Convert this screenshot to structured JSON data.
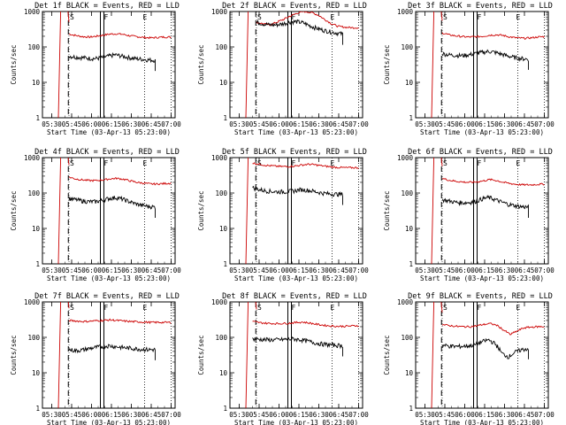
{
  "chart_data": [
    {
      "type": "line",
      "title": "Det 1f BLACK = Events, RED = LLD",
      "xlabel": "Start Time (03-Apr-13 05:23:00)",
      "ylabel": "Counts/sec",
      "yscale": "log",
      "ylim": [
        1,
        1000
      ],
      "xticks": [
        "05:30",
        "05:45",
        "06:00",
        "06:15",
        "06:30",
        "06:45",
        "07:00"
      ],
      "markers": [
        "S",
        "F",
        "E"
      ],
      "series": [
        {
          "color": "#cc0000",
          "start_time": "05:43",
          "end_time": "07:00",
          "values": [
            230,
            210,
            195,
            190,
            200,
            215,
            230,
            235,
            225,
            205,
            195,
            185,
            180,
            185,
            190,
            190
          ]
        },
        {
          "color": "#000000",
          "start_time": "05:43",
          "end_time": "06:48",
          "values": [
            55,
            52,
            50,
            48,
            47,
            50,
            55,
            60,
            55,
            50,
            47,
            45,
            43,
            42
          ]
        }
      ]
    },
    {
      "type": "line",
      "title": "Det 2f BLACK = Events, RED = LLD",
      "xlabel": "Start Time (03-Apr-13 05:23:00)",
      "ylabel": "Counts/sec",
      "yscale": "log",
      "ylim": [
        1,
        1000
      ],
      "xticks": [
        "05:30",
        "05:45",
        "06:00",
        "06:15",
        "06:30",
        "06:45",
        "07:00"
      ],
      "markers": [
        "S",
        "F",
        "E"
      ],
      "series": [
        {
          "color": "#cc0000",
          "start_time": "05:43",
          "end_time": "07:00",
          "values": [
            500,
            450,
            420,
            500,
            600,
            750,
            900,
            1000,
            950,
            800,
            600,
            450,
            380,
            360,
            350,
            350
          ]
        },
        {
          "color": "#000000",
          "start_time": "05:43",
          "end_time": "06:48",
          "values": [
            500,
            450,
            420,
            420,
            450,
            500,
            520,
            480,
            400,
            340,
            300,
            270,
            250,
            230
          ]
        }
      ]
    },
    {
      "type": "line",
      "title": "Det 3f BLACK = Events, RED = LLD",
      "xlabel": "Start Time (03-Apr-13 05:23:00)",
      "ylabel": "Counts/sec",
      "yscale": "log",
      "ylim": [
        1,
        1000
      ],
      "xticks": [
        "05:30",
        "05:45",
        "06:00",
        "06:15",
        "06:30",
        "06:45",
        "07:00"
      ],
      "markers": [
        "S",
        "F",
        "E"
      ],
      "series": [
        {
          "color": "#cc0000",
          "start_time": "05:43",
          "end_time": "07:00",
          "values": [
            250,
            220,
            205,
            195,
            190,
            195,
            200,
            215,
            220,
            210,
            190,
            180,
            175,
            180,
            190,
            195
          ]
        },
        {
          "color": "#000000",
          "start_time": "05:43",
          "end_time": "06:48",
          "values": [
            65,
            60,
            58,
            57,
            60,
            65,
            70,
            75,
            70,
            62,
            55,
            50,
            47,
            45
          ]
        }
      ]
    },
    {
      "type": "line",
      "title": "Det 4f BLACK = Events, RED = LLD",
      "xlabel": "Start Time (03-Apr-13 05:23:00)",
      "ylabel": "Counts/sec",
      "yscale": "log",
      "ylim": [
        1,
        1000
      ],
      "xticks": [
        "05:30",
        "05:45",
        "06:00",
        "06:15",
        "06:30",
        "06:45",
        "07:00"
      ],
      "markers": [
        "S",
        "F",
        "E"
      ],
      "series": [
        {
          "color": "#cc0000",
          "start_time": "05:43",
          "end_time": "07:00",
          "values": [
            280,
            250,
            235,
            225,
            225,
            235,
            250,
            260,
            245,
            220,
            200,
            190,
            180,
            180,
            185,
            190
          ]
        },
        {
          "color": "#000000",
          "start_time": "05:43",
          "end_time": "06:48",
          "values": [
            70,
            65,
            60,
            57,
            57,
            62,
            70,
            75,
            68,
            58,
            50,
            45,
            42,
            40
          ]
        }
      ]
    },
    {
      "type": "line",
      "title": "Det 5f BLACK = Events, RED = LLD",
      "xlabel": "Start Time (03-Apr-13 05:23:00)",
      "ylabel": "Counts/sec",
      "yscale": "log",
      "ylim": [
        1,
        1000
      ],
      "xticks": [
        "05:30",
        "05:45",
        "06:00",
        "06:15",
        "06:30",
        "06:45",
        "07:00"
      ],
      "markers": [
        "S",
        "F",
        "E"
      ],
      "series": [
        {
          "color": "#cc0000",
          "start_time": "05:40",
          "end_time": "07:00",
          "values": [
            700,
            650,
            600,
            580,
            560,
            560,
            580,
            620,
            650,
            620,
            580,
            550,
            530,
            520,
            520,
            520
          ]
        },
        {
          "color": "#000000",
          "start_time": "05:40",
          "end_time": "06:48",
          "values": [
            140,
            125,
            115,
            110,
            108,
            110,
            115,
            125,
            120,
            110,
            100,
            95,
            93,
            92
          ]
        }
      ]
    },
    {
      "type": "line",
      "title": "Det 6f BLACK = Events, RED = LLD",
      "xlabel": "Start Time (03-Apr-13 05:23:00)",
      "ylabel": "Counts/sec",
      "yscale": "log",
      "ylim": [
        1,
        1000
      ],
      "xticks": [
        "05:30",
        "05:45",
        "06:00",
        "06:15",
        "06:30",
        "06:45",
        "07:00"
      ],
      "markers": [
        "S",
        "F",
        "E"
      ],
      "series": [
        {
          "color": "#cc0000",
          "start_time": "05:43",
          "end_time": "07:00",
          "values": [
            260,
            230,
            215,
            205,
            200,
            205,
            220,
            240,
            225,
            200,
            185,
            175,
            170,
            170,
            175,
            180
          ]
        },
        {
          "color": "#000000",
          "start_time": "05:43",
          "end_time": "06:48",
          "values": [
            65,
            60,
            55,
            53,
            54,
            58,
            68,
            75,
            65,
            55,
            48,
            44,
            41,
            40
          ]
        }
      ]
    },
    {
      "type": "line",
      "title": "Det 7f BLACK = Events, RED = LLD",
      "xlabel": "Start Time (03-Apr-13 05:23:00)",
      "ylabel": "Counts/sec",
      "yscale": "log",
      "ylim": [
        1,
        1000
      ],
      "xticks": [
        "05:30",
        "05:45",
        "06:00",
        "06:15",
        "06:30",
        "06:45",
        "07:00"
      ],
      "markers": [
        "S",
        "F",
        "E"
      ],
      "series": [
        {
          "color": "#cc0000",
          "start_time": "05:43",
          "end_time": "07:00",
          "values": [
            300,
            290,
            280,
            285,
            295,
            300,
            310,
            300,
            290,
            280,
            275,
            270,
            265,
            265,
            265,
            265
          ]
        },
        {
          "color": "#000000",
          "start_time": "05:43",
          "end_time": "06:48",
          "values": [
            45,
            42,
            44,
            48,
            52,
            55,
            58,
            55,
            52,
            50,
            48,
            46,
            45,
            45
          ]
        }
      ]
    },
    {
      "type": "line",
      "title": "Det 8f BLACK = Events, RED = LLD",
      "xlabel": "Start Time (03-Apr-13 05:23:00)",
      "ylabel": "Counts/sec",
      "yscale": "log",
      "ylim": [
        1,
        1000
      ],
      "xticks": [
        "05:30",
        "05:45",
        "06:00",
        "06:15",
        "06:30",
        "06:45",
        "07:00"
      ],
      "markers": [
        "S",
        "F",
        "E"
      ],
      "series": [
        {
          "color": "#cc0000",
          "start_time": "05:40",
          "end_time": "07:00",
          "values": [
            280,
            260,
            250,
            245,
            245,
            250,
            260,
            270,
            255,
            235,
            220,
            210,
            205,
            205,
            210,
            215
          ]
        },
        {
          "color": "#000000",
          "start_time": "05:40",
          "end_time": "06:48",
          "values": [
            90,
            88,
            86,
            85,
            86,
            88,
            90,
            85,
            78,
            70,
            65,
            62,
            60,
            58
          ]
        }
      ]
    },
    {
      "type": "line",
      "title": "Det 9f BLACK = Events, RED = LLD",
      "xlabel": "Start Time (03-Apr-13 05:23:00)",
      "ylabel": "Counts/sec",
      "yscale": "log",
      "ylim": [
        1,
        1000
      ],
      "xticks": [
        "05:30",
        "05:45",
        "06:00",
        "06:15",
        "06:30",
        "06:45",
        "07:00"
      ],
      "markers": [
        "S",
        "F",
        "E"
      ],
      "series": [
        {
          "color": "#cc0000",
          "start_time": "05:43",
          "end_time": "07:00",
          "values": [
            230,
            215,
            205,
            200,
            200,
            210,
            230,
            245,
            220,
            160,
            120,
            150,
            185,
            195,
            200,
            200
          ]
        },
        {
          "color": "#000000",
          "start_time": "05:43",
          "end_time": "06:48",
          "values": [
            60,
            57,
            55,
            56,
            58,
            62,
            75,
            85,
            65,
            35,
            28,
            38,
            45,
            48
          ]
        }
      ]
    }
  ]
}
